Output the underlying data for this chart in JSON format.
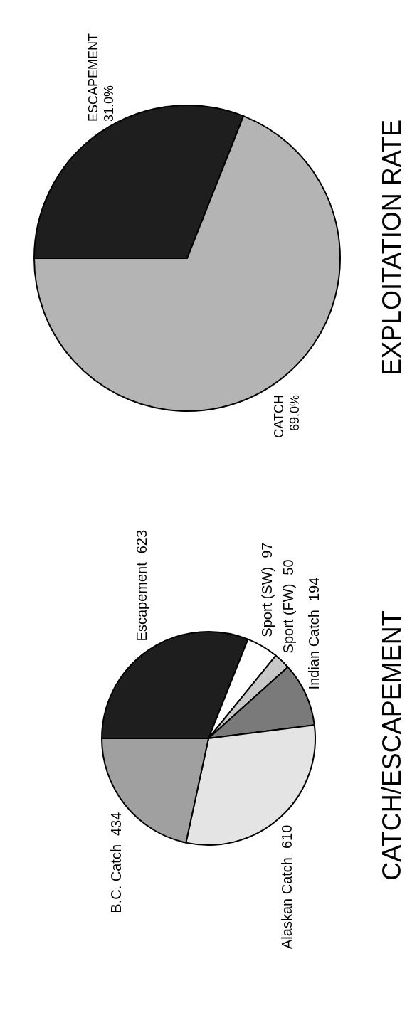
{
  "chart_data": [
    {
      "type": "pie",
      "title": "CATCH/ESCAPEMENT",
      "categories": [
        "Escapement",
        "Sport (SW)",
        "Sport (FW)",
        "Indian Catch",
        "Alaskan Catch",
        "B.C. Catch"
      ],
      "values": [
        623,
        97,
        50,
        194,
        610,
        434
      ],
      "colors": [
        "#1e1e1e",
        "#ffffff",
        "#c8c8c8",
        "#7a7a7a",
        "#e4e4e4",
        "#a0a0a0"
      ],
      "data_labels": true
    },
    {
      "type": "pie",
      "title": "EXPLOITATION RATE",
      "categories": [
        "ESCAPEMENT",
        "CATCH"
      ],
      "values": [
        31.0,
        69.0
      ],
      "colors": [
        "#1e1e1e",
        "#b4b4b4"
      ],
      "value_labels": [
        "31.0%",
        "69.0%"
      ]
    }
  ]
}
